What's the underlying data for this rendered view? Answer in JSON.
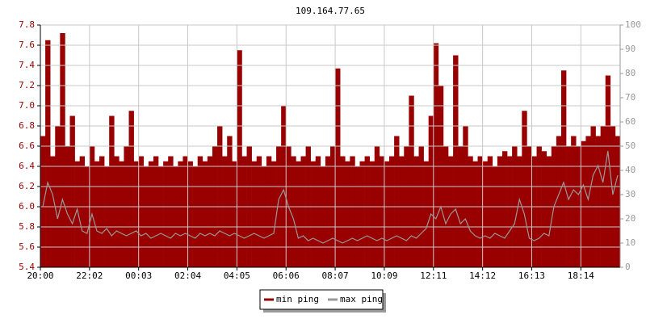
{
  "chart_data": {
    "type": "bar-line",
    "title": "109.164.77.65",
    "categories": [
      "20:00",
      null,
      null,
      null,
      null,
      null,
      null,
      null,
      null,
      null,
      "22:02",
      null,
      null,
      null,
      null,
      null,
      null,
      null,
      null,
      null,
      "00:03",
      null,
      null,
      null,
      null,
      null,
      null,
      null,
      null,
      null,
      "02:04",
      null,
      null,
      null,
      null,
      null,
      null,
      null,
      null,
      null,
      "04:05",
      null,
      null,
      null,
      null,
      null,
      null,
      null,
      null,
      null,
      "06:06",
      null,
      null,
      null,
      null,
      null,
      null,
      null,
      null,
      null,
      "08:07",
      null,
      null,
      null,
      null,
      null,
      null,
      null,
      null,
      null,
      "10:09",
      null,
      null,
      null,
      null,
      null,
      null,
      null,
      null,
      null,
      "12:11",
      null,
      null,
      null,
      null,
      null,
      null,
      null,
      null,
      null,
      "14:12",
      null,
      null,
      null,
      null,
      null,
      null,
      null,
      null,
      null,
      "16:13",
      null,
      null,
      null,
      null,
      null,
      null,
      null,
      null,
      null,
      "18:14",
      null,
      null,
      null,
      null,
      null,
      null,
      null
    ],
    "series": [
      {
        "name": "min ping",
        "color": "#990000",
        "values": [
          6.7,
          7.65,
          6.5,
          6.8,
          7.72,
          6.6,
          6.9,
          6.45,
          6.5,
          6.4,
          6.6,
          6.45,
          6.5,
          6.4,
          6.9,
          6.5,
          6.45,
          6.6,
          6.95,
          6.45,
          6.5,
          6.4,
          6.45,
          6.5,
          6.4,
          6.45,
          6.5,
          6.4,
          6.45,
          6.5,
          6.45,
          6.4,
          6.5,
          6.45,
          6.5,
          6.6,
          6.8,
          6.5,
          6.7,
          6.45,
          7.55,
          6.5,
          6.6,
          6.45,
          6.5,
          6.4,
          6.5,
          6.45,
          6.6,
          7.0,
          6.6,
          6.5,
          6.45,
          6.5,
          6.6,
          6.45,
          6.5,
          6.4,
          6.5,
          6.6,
          7.37,
          6.5,
          6.45,
          6.5,
          6.4,
          6.45,
          6.5,
          6.45,
          6.6,
          6.5,
          6.45,
          6.5,
          6.7,
          6.5,
          6.6,
          7.1,
          6.5,
          6.6,
          6.45,
          6.9,
          7.62,
          7.2,
          6.6,
          6.5,
          7.5,
          6.6,
          6.8,
          6.5,
          6.45,
          6.5,
          6.45,
          6.5,
          6.4,
          6.5,
          6.55,
          6.5,
          6.6,
          6.5,
          6.95,
          6.6,
          6.5,
          6.6,
          6.55,
          6.5,
          6.6,
          6.7,
          7.35,
          6.6,
          6.7,
          6.6,
          6.65,
          6.7,
          6.8,
          6.7,
          6.8,
          7.3,
          6.8,
          6.7
        ]
      },
      {
        "name": "max ping",
        "color": "#999999",
        "axis": "y2",
        "values": [
          25,
          35,
          30,
          20,
          28,
          22,
          18,
          24,
          15,
          14,
          22,
          15,
          14,
          16,
          13,
          15,
          14,
          13,
          14,
          15,
          13,
          14,
          12,
          13,
          14,
          13,
          12,
          14,
          13,
          14,
          13,
          12,
          14,
          13,
          14,
          13,
          15,
          14,
          13,
          14,
          13,
          12,
          13,
          14,
          13,
          12,
          13,
          14,
          28,
          32,
          25,
          20,
          12,
          13,
          11,
          12,
          11,
          10,
          11,
          12,
          11,
          10,
          11,
          12,
          11,
          12,
          13,
          12,
          11,
          12,
          11,
          12,
          13,
          12,
          11,
          13,
          12,
          14,
          16,
          22,
          20,
          25,
          18,
          22,
          24,
          18,
          20,
          15,
          13,
          12,
          13,
          12,
          14,
          13,
          12,
          15,
          18,
          28,
          22,
          12,
          11,
          12,
          14,
          13,
          25,
          30,
          35,
          28,
          32,
          30,
          34,
          28,
          38,
          42,
          35,
          48,
          30,
          38
        ]
      }
    ],
    "ylim": [
      5.4,
      7.8
    ],
    "yticks": [
      5.4,
      5.6,
      5.8,
      {
        "value": 6,
        "label": "6.0"
      },
      6.2,
      6.4,
      6.6,
      6.8,
      {
        "value": 7,
        "label": "7.0"
      },
      7.2,
      7.4,
      7.6,
      7.8
    ],
    "y2lim": [
      0,
      100
    ],
    "y2ticks": [
      0,
      10,
      20,
      30,
      40,
      50,
      60,
      70,
      80,
      90,
      100
    ],
    "grid": true,
    "legend": "bottom"
  }
}
